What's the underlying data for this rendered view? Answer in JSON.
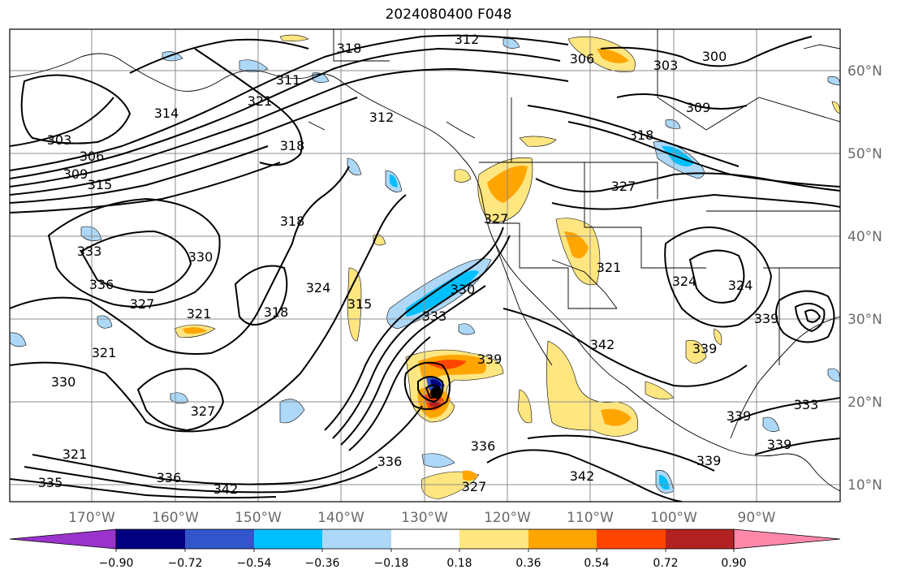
{
  "title": "2024080400 F048",
  "map": {
    "latitude_labels": [
      "60°N",
      "50°N",
      "40°N",
      "30°N",
      "20°N",
      "10°N"
    ],
    "longitude_labels": [
      "170°W",
      "160°W",
      "150°W",
      "140°W",
      "130°W",
      "120°W",
      "110°W",
      "100°W",
      "90°W"
    ],
    "contour_labels": [
      "312",
      "306",
      "303",
      "300",
      "318",
      "309",
      "318",
      "311",
      "312",
      "314",
      "321",
      "303",
      "306",
      "309",
      "315",
      "318",
      "327",
      "318",
      "333",
      "330",
      "336",
      "327",
      "321",
      "318",
      "324",
      "315",
      "333",
      "330",
      "339",
      "342",
      "327",
      "321",
      "324",
      "324",
      "339",
      "321",
      "330",
      "327",
      "339",
      "336",
      "342",
      "339",
      "333",
      "339",
      "336",
      "342",
      "327",
      "336",
      "339",
      "335",
      "321"
    ],
    "field_colors": {
      "positive_light": "#ffe680",
      "positive_mid": "#ffa500",
      "positive_strong": "#ff4500",
      "positive_max": "#b22222",
      "negative_light": "#add8f8",
      "negative_mid": "#00bfff",
      "negative_strong": "#3355cc",
      "negative_max": "#000080",
      "contour_line": "#000000"
    }
  },
  "colorbar": {
    "tick_labels": [
      "−0.90",
      "−0.72",
      "−0.54",
      "−0.36",
      "−0.18",
      "0.18",
      "0.36",
      "0.54",
      "0.72",
      "0.90"
    ],
    "colors": [
      "#9933cc",
      "#000080",
      "#3355cc",
      "#00bfff",
      "#add8f8",
      "#ffffff",
      "#ffe680",
      "#ffa500",
      "#ff4500",
      "#b22222",
      "#ff88aa"
    ]
  }
}
